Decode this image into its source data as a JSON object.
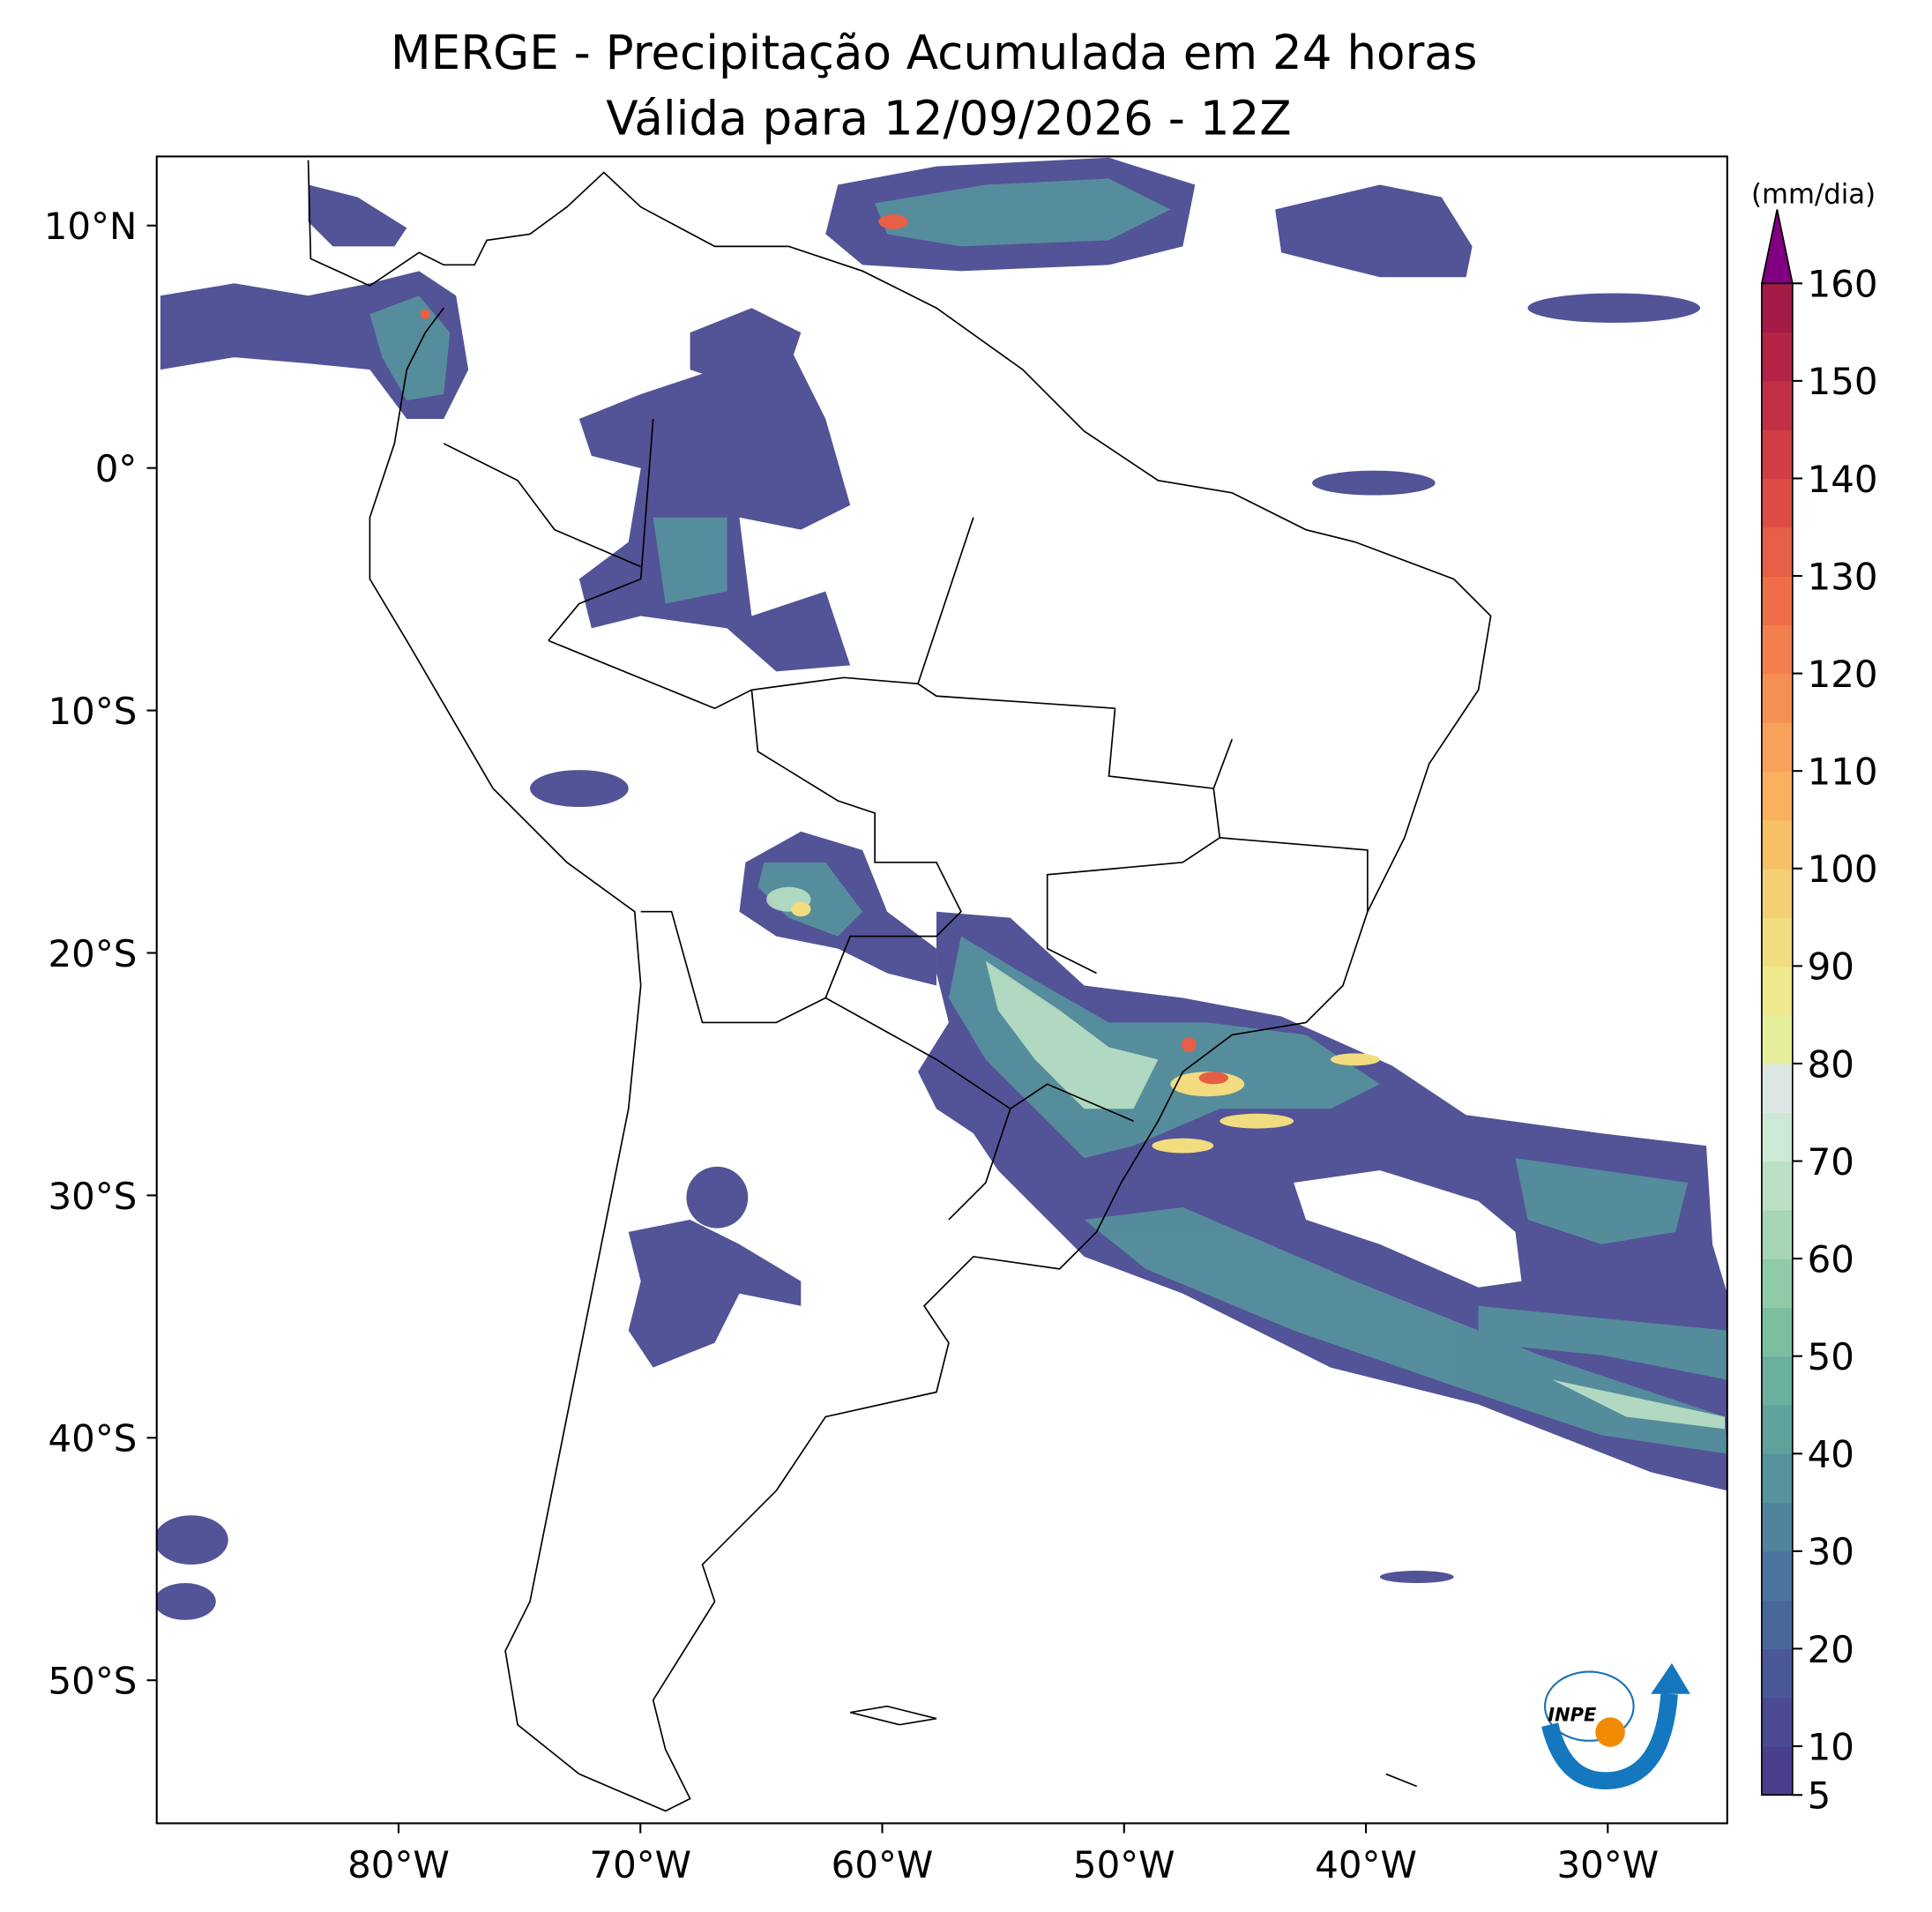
{
  "chart_data": {
    "type": "map",
    "title": "MERGE - Precipitação Acumulada em 24 horas",
    "subtitle": "Válida para 12/09/2026 - 12Z",
    "xlim": [
      -90,
      -25.06
    ],
    "ylim": [
      -55.9,
      12.85
    ],
    "xticks": [
      {
        "value": -80,
        "label": "80°W"
      },
      {
        "value": -70,
        "label": "70°W"
      },
      {
        "value": -60,
        "label": "60°W"
      },
      {
        "value": -50,
        "label": "50°W"
      },
      {
        "value": -40,
        "label": "40°W"
      },
      {
        "value": -30,
        "label": "30°W"
      }
    ],
    "yticks": [
      {
        "value": 10,
        "label": "10°N"
      },
      {
        "value": 0,
        "label": "0°"
      },
      {
        "value": -10,
        "label": "10°S"
      },
      {
        "value": -20,
        "label": "20°S"
      },
      {
        "value": -30,
        "label": "30°S"
      },
      {
        "value": -40,
        "label": "40°S"
      },
      {
        "value": -50,
        "label": "50°S"
      }
    ],
    "colorbar": {
      "label": "(mm/dia)",
      "lim": [
        5,
        160
      ],
      "ticks": [
        5,
        10,
        20,
        30,
        40,
        50,
        60,
        70,
        80,
        90,
        100,
        110,
        120,
        130,
        140,
        150,
        160
      ],
      "colors": [
        "#4a3f8d",
        "#4b4a93",
        "#4b5898",
        "#4a679c",
        "#4c759e",
        "#50849d",
        "#56939c",
        "#5ea29b",
        "#6ab09c",
        "#7bbea0",
        "#90cba8",
        "#a6d6b4",
        "#bbe0c4",
        "#cee8d6",
        "#dde8e4",
        "#e6ee9c",
        "#eee88e",
        "#f1dc80",
        "#f4cf74",
        "#f7c066",
        "#f9b05f",
        "#f9a05a",
        "#f68f54",
        "#f37f4e",
        "#ee6e49",
        "#e65e45",
        "#db4d44",
        "#cf3e45",
        "#c23046",
        "#b42446",
        "#a41b48"
      ],
      "extend_color": "#800080"
    },
    "logo_text": "INPE"
  }
}
